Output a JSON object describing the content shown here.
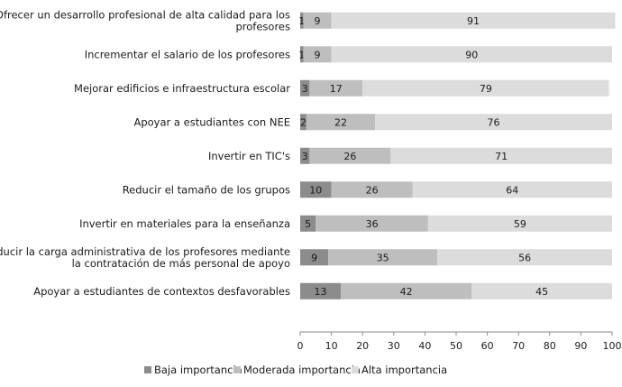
{
  "chart_data": {
    "type": "bar",
    "stacked": true,
    "orientation": "horizontal",
    "categories": [
      [
        "Ofrecer un desarrollo profesional de alta calidad para los",
        "profesores"
      ],
      [
        "Incrementar el salario de los profesores"
      ],
      [
        "Mejorar edificios e infraestructura escolar"
      ],
      [
        "Apoyar a estudiantes con NEE"
      ],
      [
        "Invertir en TIC's"
      ],
      [
        "Reducir el tamaño de los grupos"
      ],
      [
        "Invertir en materiales para la enseñanza"
      ],
      [
        "Reducir la carga administrativa de los profesores mediante",
        "la contratación de más personal de apoyo"
      ],
      [
        "Apoyar a estudiantes de contextos desfavorables"
      ]
    ],
    "series": [
      {
        "name": "Baja importancia",
        "color": "#8c8c8c",
        "values": [
          1,
          1,
          3,
          2,
          3,
          10,
          5,
          9,
          13
        ]
      },
      {
        "name": "Moderada importancia",
        "color": "#bebebe",
        "values": [
          9,
          9,
          17,
          22,
          26,
          26,
          36,
          35,
          42
        ]
      },
      {
        "name": "Alta importancia",
        "color": "#dcdcdc",
        "values": [
          91,
          90,
          79,
          76,
          71,
          64,
          59,
          56,
          45
        ]
      }
    ],
    "xlim": [
      0,
      100
    ],
    "xticks": [
      0,
      10,
      20,
      30,
      40,
      50,
      60,
      70,
      80,
      90,
      100
    ],
    "grid": false,
    "legend": "bottom"
  }
}
